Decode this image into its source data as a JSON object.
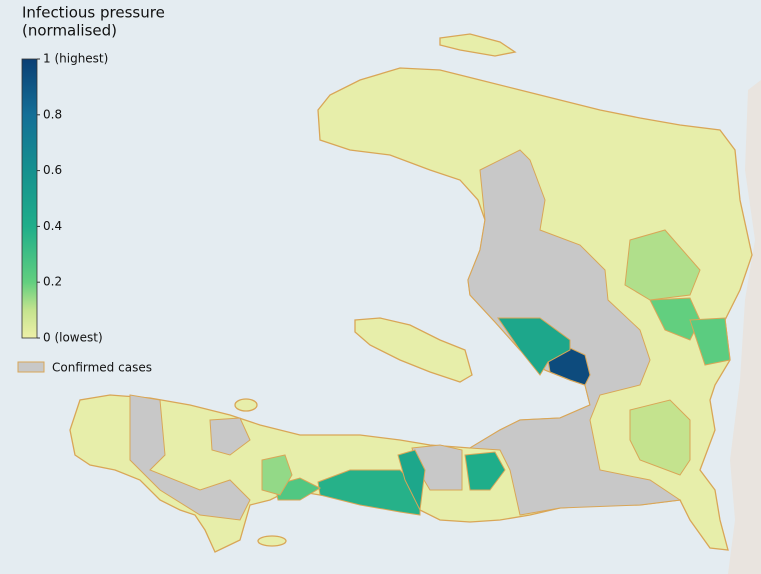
{
  "chart_data": {
    "type": "choropleth",
    "title": [
      "Infectious pressure",
      "(normalised)"
    ],
    "colorbar_lim": [
      0,
      1
    ],
    "colorbar_ticks": [
      {
        "value": 0,
        "label": "0 (lowest)"
      },
      0.2,
      0.4,
      0.6,
      0.8,
      {
        "value": 1,
        "label": "1 (highest)"
      }
    ],
    "legend": {
      "label": "Confirmed cases",
      "color": "#c8c8c8",
      "edge_color": "#d9a657"
    },
    "region_values": [
      0.95,
      0.45,
      0.38,
      0.45,
      0.4,
      0.25,
      0.15,
      0.2,
      0.22,
      0.12,
      0.1
    ]
  }
}
